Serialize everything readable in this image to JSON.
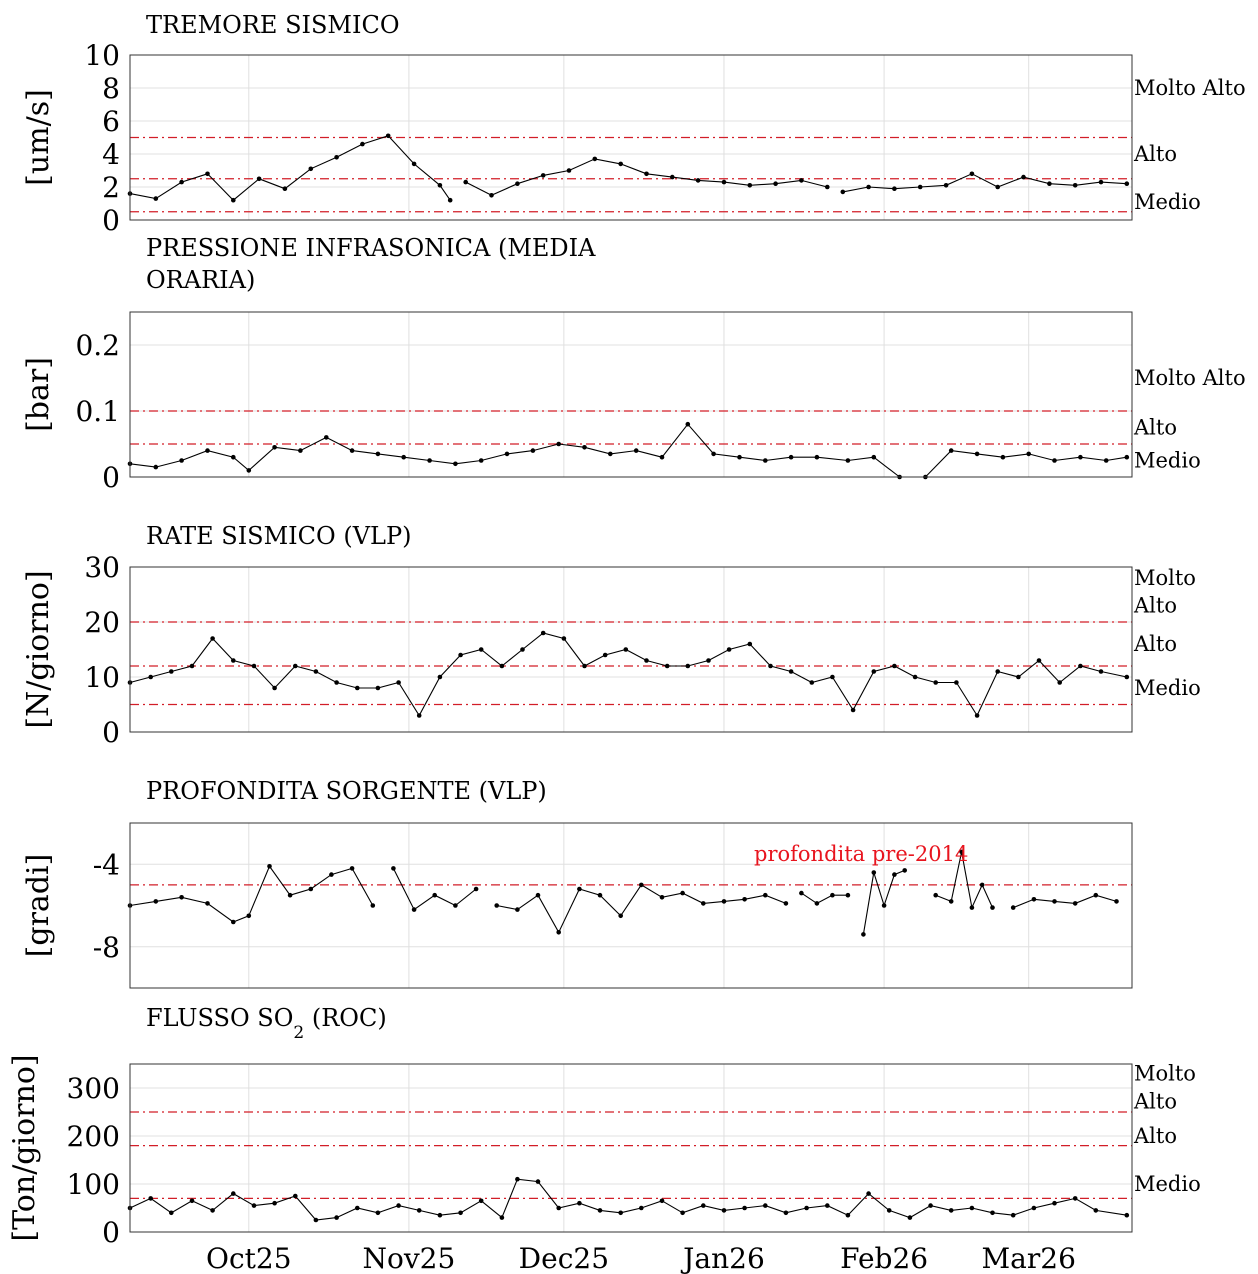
{
  "chart_data": [
    {
      "type": "line",
      "title": "TREMORE SISMICO",
      "ylabel": "[um/s]",
      "ylim": [
        0,
        10
      ],
      "yticks": [
        "0",
        "2",
        "4",
        "6",
        "8",
        "10"
      ],
      "grid": true,
      "thresholds": [
        0.5,
        2.5,
        5
      ],
      "levels": [
        {
          "label": "Medio",
          "value": 1.1
        },
        {
          "label": "Alto",
          "value": 4.0
        },
        {
          "label": "Molto Alto",
          "value": 8.0
        }
      ],
      "series": [
        {
          "x": [
            "2025-09-08",
            "2025-09-13",
            "2025-09-18",
            "2025-09-23",
            "2025-09-28",
            "2025-10-03",
            "2025-10-08",
            "2025-10-13",
            "2025-10-18",
            "2025-10-23",
            "2025-10-28",
            "2025-11-02",
            "2025-11-07",
            "2025-11-09"
          ],
          "y": [
            1.6,
            1.3,
            2.3,
            2.8,
            1.2,
            2.5,
            1.9,
            3.1,
            3.8,
            4.6,
            5.1,
            3.4,
            2.1,
            1.2
          ]
        },
        {
          "x": [
            "2025-11-12",
            "2025-11-17",
            "2025-11-22",
            "2025-11-27",
            "2025-12-02",
            "2025-12-07",
            "2025-12-12",
            "2025-12-17",
            "2025-12-22",
            "2025-12-27",
            "2026-01-01",
            "2026-01-06",
            "2026-01-11",
            "2026-01-16",
            "2026-01-21"
          ],
          "y": [
            2.3,
            1.5,
            2.2,
            2.7,
            3.0,
            3.7,
            3.4,
            2.8,
            2.6,
            2.4,
            2.3,
            2.1,
            2.2,
            2.4,
            2.0
          ]
        },
        {
          "x": [
            "2026-01-24",
            "2026-01-29",
            "2026-02-03",
            "2026-02-08",
            "2026-02-13",
            "2026-02-18",
            "2026-02-23",
            "2026-02-28",
            "2026-03-05",
            "2026-03-10",
            "2026-03-15",
            "2026-03-20"
          ],
          "y": [
            1.7,
            2.0,
            1.9,
            2.0,
            2.1,
            2.8,
            2.0,
            2.6,
            2.2,
            2.1,
            2.3,
            2.2
          ]
        }
      ]
    },
    {
      "type": "line",
      "title": "PRESSIONE INFRASONICA (MEDIA ORARIA)",
      "ylabel": "[bar]",
      "ylim": [
        0,
        0.25
      ],
      "yticks": [
        "0",
        "0.1",
        "0.2"
      ],
      "grid": true,
      "thresholds": [
        0.05,
        0.1
      ],
      "levels": [
        {
          "label": "Medio",
          "value": 0.025
        },
        {
          "label": "Alto",
          "value": 0.075
        },
        {
          "label": "Molto Alto",
          "value": 0.15
        }
      ],
      "series": [
        {
          "x": [
            "2025-09-08",
            "2025-09-13",
            "2025-09-18",
            "2025-09-23",
            "2025-09-28",
            "2025-10-01",
            "2025-10-06",
            "2025-10-11",
            "2025-10-16",
            "2025-10-21",
            "2025-10-26",
            "2025-10-31",
            "2025-11-05",
            "2025-11-10",
            "2025-11-15",
            "2025-11-20",
            "2025-11-25",
            "2025-11-30",
            "2025-12-05",
            "2025-12-10",
            "2025-12-15",
            "2025-12-20",
            "2025-12-25",
            "2025-12-30",
            "2026-01-04",
            "2026-01-09",
            "2026-01-14",
            "2026-01-19",
            "2026-01-25",
            "2026-01-30",
            "2026-02-04",
            "2026-02-09",
            "2026-02-14",
            "2026-02-19",
            "2026-02-24",
            "2026-03-01",
            "2026-03-06",
            "2026-03-11",
            "2026-03-16",
            "2026-03-20"
          ],
          "y": [
            0.02,
            0.015,
            0.025,
            0.04,
            0.03,
            0.01,
            0.045,
            0.04,
            0.06,
            0.04,
            0.035,
            0.03,
            0.025,
            0.02,
            0.025,
            0.035,
            0.04,
            0.05,
            0.045,
            0.035,
            0.04,
            0.03,
            0.08,
            0.035,
            0.03,
            0.025,
            0.03,
            0.03,
            0.025,
            0.03,
            0.0,
            0.0,
            0.04,
            0.035,
            0.03,
            0.035,
            0.025,
            0.03,
            0.025,
            0.03
          ]
        }
      ]
    },
    {
      "type": "line",
      "title": "RATE SISMICO (VLP)",
      "ylabel": "[N/giorno]",
      "ylim": [
        0,
        30
      ],
      "yticks": [
        "0",
        "10",
        "20",
        "30"
      ],
      "grid": true,
      "thresholds": [
        5,
        12,
        20
      ],
      "levels": [
        {
          "label": "Medio",
          "value": 8
        },
        {
          "label": "Alto",
          "value": 16
        },
        {
          "label": "Molto",
          "value": 28
        },
        {
          "label": "Alto",
          "value": 23
        }
      ],
      "series": [
        {
          "x": [
            "2025-09-08",
            "2025-09-12",
            "2025-09-16",
            "2025-09-20",
            "2025-09-24",
            "2025-09-28",
            "2025-10-02",
            "2025-10-06",
            "2025-10-10",
            "2025-10-14",
            "2025-10-18",
            "2025-10-22",
            "2025-10-26",
            "2025-10-30",
            "2025-11-03",
            "2025-11-07",
            "2025-11-11",
            "2025-11-15",
            "2025-11-19",
            "2025-11-23",
            "2025-11-27",
            "2025-12-01",
            "2025-12-05",
            "2025-12-09",
            "2025-12-13",
            "2025-12-17",
            "2025-12-21",
            "2025-12-25",
            "2025-12-29",
            "2026-01-02",
            "2026-01-06",
            "2026-01-10",
            "2026-01-14",
            "2026-01-18",
            "2026-01-22",
            "2026-01-26",
            "2026-01-30",
            "2026-02-03",
            "2026-02-07",
            "2026-02-11",
            "2026-02-15",
            "2026-02-19",
            "2026-02-23",
            "2026-02-27",
            "2026-03-03",
            "2026-03-07",
            "2026-03-11",
            "2026-03-15",
            "2026-03-20"
          ],
          "y": [
            9,
            10,
            11,
            12,
            17,
            13,
            12,
            8,
            12,
            11,
            9,
            8,
            8,
            9,
            3,
            10,
            14,
            15,
            12,
            15,
            18,
            17,
            12,
            14,
            15,
            13,
            12,
            12,
            13,
            15,
            16,
            12,
            11,
            9,
            10,
            4,
            11,
            12,
            10,
            9,
            9,
            3,
            11,
            10,
            13,
            9,
            12,
            11,
            10
          ]
        }
      ]
    },
    {
      "type": "line",
      "title": "PROFONDITA SORGENTE (VLP)",
      "ylabel": "[gradi]",
      "ylim": [
        -10,
        -2
      ],
      "yticks": [
        "-8",
        "-4"
      ],
      "grid": true,
      "thresholds": [
        -5
      ],
      "annotations": [
        "profondita pre-2014"
      ],
      "series": [
        {
          "x": [
            "2025-09-08",
            "2025-09-13",
            "2025-09-18",
            "2025-09-23",
            "2025-09-28",
            "2025-10-01",
            "2025-10-05",
            "2025-10-09",
            "2025-10-13",
            "2025-10-17",
            "2025-10-21",
            "2025-10-25"
          ],
          "y": [
            -6,
            -5.8,
            -5.6,
            -5.9,
            -6.8,
            -6.5,
            -4.1,
            -5.5,
            -5.2,
            -4.5,
            -4.2,
            -6
          ]
        },
        {
          "x": [
            "2025-10-29",
            "2025-11-02",
            "2025-11-06",
            "2025-11-10",
            "2025-11-14"
          ],
          "y": [
            -4.2,
            -6.2,
            -5.5,
            -6,
            -5.2
          ]
        },
        {
          "x": [
            "2025-11-18",
            "2025-11-22",
            "2025-11-26",
            "2025-11-30",
            "2025-12-04",
            "2025-12-08",
            "2025-12-12",
            "2025-12-16",
            "2025-12-20",
            "2025-12-24",
            "2025-12-28",
            "2026-01-01",
            "2026-01-05",
            "2026-01-09",
            "2026-01-13"
          ],
          "y": [
            -6,
            -6.2,
            -5.5,
            -7.3,
            -5.2,
            -5.5,
            -6.5,
            -5,
            -5.6,
            -5.4,
            -5.9,
            -5.8,
            -5.7,
            -5.5,
            -5.9
          ]
        },
        {
          "x": [
            "2026-01-16",
            "2026-01-19",
            "2026-01-22",
            "2026-01-25"
          ],
          "y": [
            -5.4,
            -5.9,
            -5.5,
            -5.5
          ]
        },
        {
          "x": [
            "2026-01-28",
            "2026-01-30",
            "2026-02-01",
            "2026-02-03",
            "2026-02-05"
          ],
          "y": [
            -7.4,
            -4.4,
            -6,
            -4.5,
            -4.3
          ]
        },
        {
          "x": [
            "2026-02-11",
            "2026-02-14",
            "2026-02-16",
            "2026-02-18",
            "2026-02-20",
            "2026-02-22"
          ],
          "y": [
            -5.5,
            -5.8,
            -3.4,
            -6.1,
            -5,
            -6.1
          ]
        },
        {
          "x": [
            "2026-02-26",
            "2026-03-02",
            "2026-03-06",
            "2026-03-10",
            "2026-03-14",
            "2026-03-18"
          ],
          "y": [
            -6.1,
            -5.7,
            -5.8,
            -5.9,
            -5.5,
            -5.8
          ]
        }
      ]
    },
    {
      "type": "line",
      "title": "FLUSSO SO",
      "title_sub": "2",
      "title_end": " (ROC)",
      "ylabel": "[Ton/giorno]",
      "ylim": [
        0,
        350
      ],
      "yticks": [
        "0",
        "100",
        "200",
        "300"
      ],
      "grid": true,
      "thresholds": [
        70,
        180,
        250
      ],
      "levels": [
        {
          "label": "Medio",
          "value": 100
        },
        {
          "label": "Alto",
          "value": 200
        },
        {
          "label": "Molto",
          "value": 330
        },
        {
          "label": "Alto",
          "value": 272
        }
      ],
      "series": [
        {
          "x": [
            "2025-09-08",
            "2025-09-12",
            "2025-09-16",
            "2025-09-20",
            "2025-09-24",
            "2025-09-28",
            "2025-10-02",
            "2025-10-06",
            "2025-10-10",
            "2025-10-14",
            "2025-10-18",
            "2025-10-22",
            "2025-10-26",
            "2025-10-30",
            "2025-11-03",
            "2025-11-07",
            "2025-11-11",
            "2025-11-15",
            "2025-11-19",
            "2025-11-22",
            "2025-11-26",
            "2025-11-30",
            "2025-12-04",
            "2025-12-08",
            "2025-12-12",
            "2025-12-16",
            "2025-12-20",
            "2025-12-24",
            "2025-12-28",
            "2026-01-01",
            "2026-01-05",
            "2026-01-09",
            "2026-01-13",
            "2026-01-17",
            "2026-01-21",
            "2026-01-25",
            "2026-01-29",
            "2026-02-02",
            "2026-02-06",
            "2026-02-10",
            "2026-02-14",
            "2026-02-18",
            "2026-02-22",
            "2026-02-26",
            "2026-03-02",
            "2026-03-06",
            "2026-03-10",
            "2026-03-14",
            "2026-03-20"
          ],
          "y": [
            50,
            70,
            40,
            65,
            45,
            80,
            55,
            60,
            75,
            25,
            30,
            50,
            40,
            55,
            45,
            35,
            40,
            65,
            30,
            110,
            105,
            50,
            60,
            45,
            40,
            50,
            65,
            40,
            55,
            45,
            50,
            55,
            40,
            50,
            55,
            35,
            80,
            45,
            30,
            55,
            45,
            50,
            40,
            35,
            50,
            60,
            70,
            45,
            35
          ]
        }
      ]
    }
  ],
  "x_axis": {
    "ticks": [
      "Oct25",
      "Nov25",
      "Dec25",
      "Jan26",
      "Feb26",
      "Mar26"
    ],
    "range": [
      "2025-09-08",
      "2026-03-21"
    ]
  },
  "colors": {
    "line": "#000000",
    "threshold": "#d21e28",
    "grid": "#e0e0e0",
    "annotation": "#e8141e"
  }
}
